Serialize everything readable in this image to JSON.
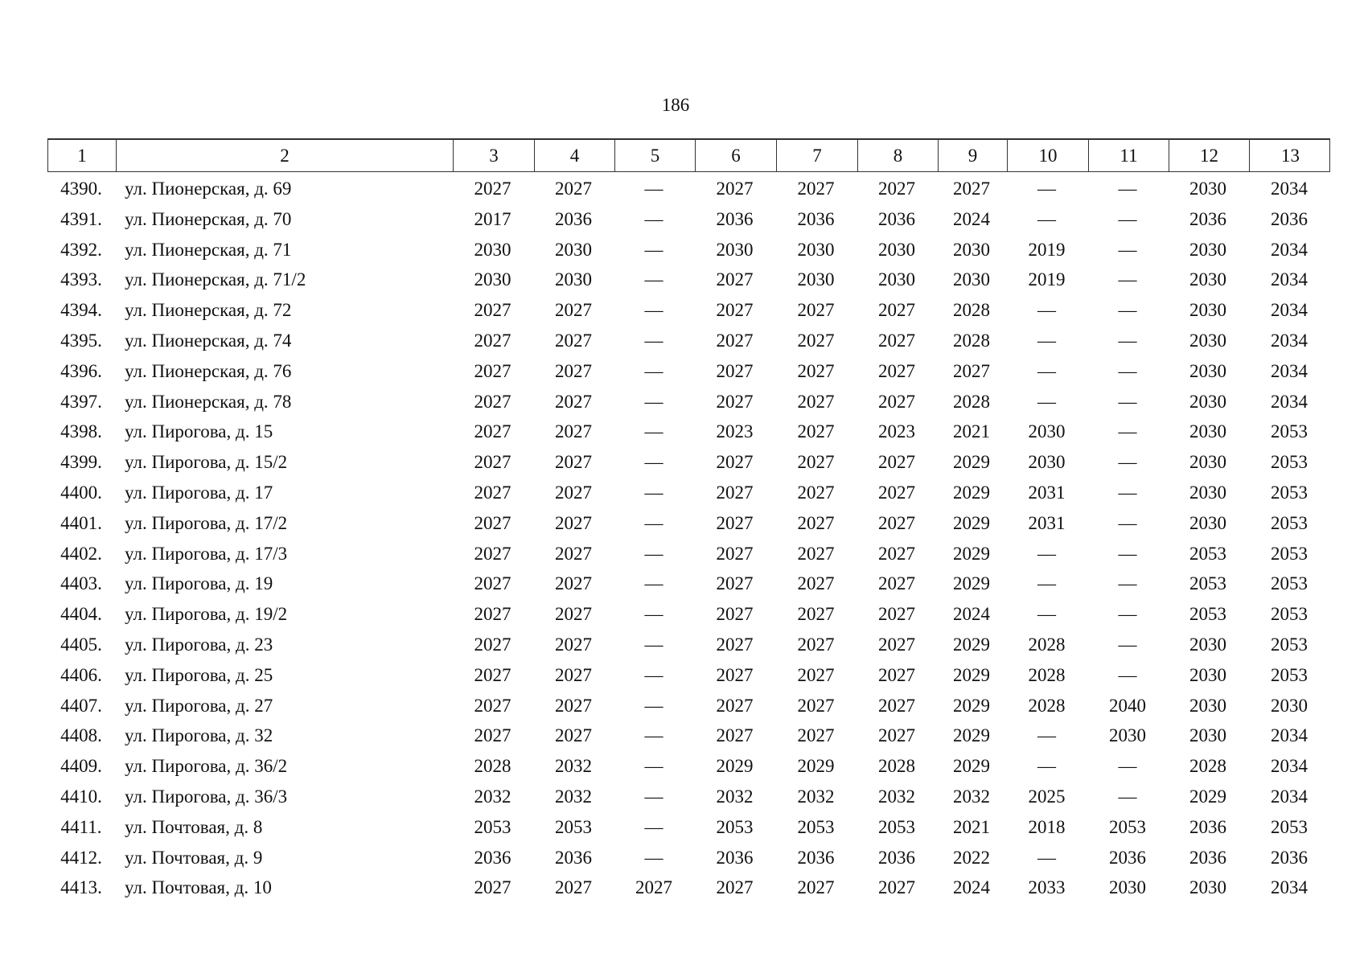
{
  "page_number": "186",
  "table": {
    "header": [
      "1",
      "2",
      "3",
      "4",
      "5",
      "6",
      "7",
      "8",
      "9",
      "10",
      "11",
      "12",
      "13"
    ],
    "rows": [
      [
        "4390.",
        "ул. Пионерская, д. 69",
        "2027",
        "2027",
        "—",
        "2027",
        "2027",
        "2027",
        "2027",
        "—",
        "—",
        "2030",
        "2034"
      ],
      [
        "4391.",
        "ул. Пионерская, д. 70",
        "2017",
        "2036",
        "—",
        "2036",
        "2036",
        "2036",
        "2024",
        "—",
        "—",
        "2036",
        "2036"
      ],
      [
        "4392.",
        "ул. Пионерская, д. 71",
        "2030",
        "2030",
        "—",
        "2030",
        "2030",
        "2030",
        "2030",
        "2019",
        "—",
        "2030",
        "2034"
      ],
      [
        "4393.",
        "ул. Пионерская, д. 71/2",
        "2030",
        "2030",
        "—",
        "2027",
        "2030",
        "2030",
        "2030",
        "2019",
        "—",
        "2030",
        "2034"
      ],
      [
        "4394.",
        "ул. Пионерская, д. 72",
        "2027",
        "2027",
        "—",
        "2027",
        "2027",
        "2027",
        "2028",
        "—",
        "—",
        "2030",
        "2034"
      ],
      [
        "4395.",
        "ул. Пионерская, д. 74",
        "2027",
        "2027",
        "—",
        "2027",
        "2027",
        "2027",
        "2028",
        "—",
        "—",
        "2030",
        "2034"
      ],
      [
        "4396.",
        "ул. Пионерская, д. 76",
        "2027",
        "2027",
        "—",
        "2027",
        "2027",
        "2027",
        "2027",
        "—",
        "—",
        "2030",
        "2034"
      ],
      [
        "4397.",
        "ул. Пионерская, д. 78",
        "2027",
        "2027",
        "—",
        "2027",
        "2027",
        "2027",
        "2028",
        "—",
        "—",
        "2030",
        "2034"
      ],
      [
        "4398.",
        "ул. Пирогова, д. 15",
        "2027",
        "2027",
        "—",
        "2023",
        "2027",
        "2023",
        "2021",
        "2030",
        "—",
        "2030",
        "2053"
      ],
      [
        "4399.",
        "ул. Пирогова, д. 15/2",
        "2027",
        "2027",
        "—",
        "2027",
        "2027",
        "2027",
        "2029",
        "2030",
        "—",
        "2030",
        "2053"
      ],
      [
        "4400.",
        "ул. Пирогова, д. 17",
        "2027",
        "2027",
        "—",
        "2027",
        "2027",
        "2027",
        "2029",
        "2031",
        "—",
        "2030",
        "2053"
      ],
      [
        "4401.",
        "ул. Пирогова, д. 17/2",
        "2027",
        "2027",
        "—",
        "2027",
        "2027",
        "2027",
        "2029",
        "2031",
        "—",
        "2030",
        "2053"
      ],
      [
        "4402.",
        "ул. Пирогова, д. 17/3",
        "2027",
        "2027",
        "—",
        "2027",
        "2027",
        "2027",
        "2029",
        "—",
        "—",
        "2053",
        "2053"
      ],
      [
        "4403.",
        "ул. Пирогова, д. 19",
        "2027",
        "2027",
        "—",
        "2027",
        "2027",
        "2027",
        "2029",
        "—",
        "—",
        "2053",
        "2053"
      ],
      [
        "4404.",
        "ул. Пирогова, д. 19/2",
        "2027",
        "2027",
        "—",
        "2027",
        "2027",
        "2027",
        "2024",
        "—",
        "—",
        "2053",
        "2053"
      ],
      [
        "4405.",
        "ул. Пирогова, д. 23",
        "2027",
        "2027",
        "—",
        "2027",
        "2027",
        "2027",
        "2029",
        "2028",
        "—",
        "2030",
        "2053"
      ],
      [
        "4406.",
        "ул. Пирогова, д. 25",
        "2027",
        "2027",
        "—",
        "2027",
        "2027",
        "2027",
        "2029",
        "2028",
        "—",
        "2030",
        "2053"
      ],
      [
        "4407.",
        "ул. Пирогова, д. 27",
        "2027",
        "2027",
        "—",
        "2027",
        "2027",
        "2027",
        "2029",
        "2028",
        "2040",
        "2030",
        "2030"
      ],
      [
        "4408.",
        "ул. Пирогова, д. 32",
        "2027",
        "2027",
        "—",
        "2027",
        "2027",
        "2027",
        "2029",
        "—",
        "2030",
        "2030",
        "2034"
      ],
      [
        "4409.",
        "ул. Пирогова, д. 36/2",
        "2028",
        "2032",
        "—",
        "2029",
        "2029",
        "2028",
        "2029",
        "—",
        "—",
        "2028",
        "2034"
      ],
      [
        "4410.",
        "ул. Пирогова, д. 36/3",
        "2032",
        "2032",
        "—",
        "2032",
        "2032",
        "2032",
        "2032",
        "2025",
        "—",
        "2029",
        "2034"
      ],
      [
        "4411.",
        "ул. Почтовая, д. 8",
        "2053",
        "2053",
        "—",
        "2053",
        "2053",
        "2053",
        "2021",
        "2018",
        "2053",
        "2036",
        "2053"
      ],
      [
        "4412.",
        "ул. Почтовая, д. 9",
        "2036",
        "2036",
        "—",
        "2036",
        "2036",
        "2036",
        "2022",
        "—",
        "2036",
        "2036",
        "2036"
      ],
      [
        "4413.",
        "ул. Почтовая, д. 10",
        "2027",
        "2027",
        "2027",
        "2027",
        "2027",
        "2027",
        "2024",
        "2033",
        "2030",
        "2030",
        "2034"
      ]
    ]
  }
}
